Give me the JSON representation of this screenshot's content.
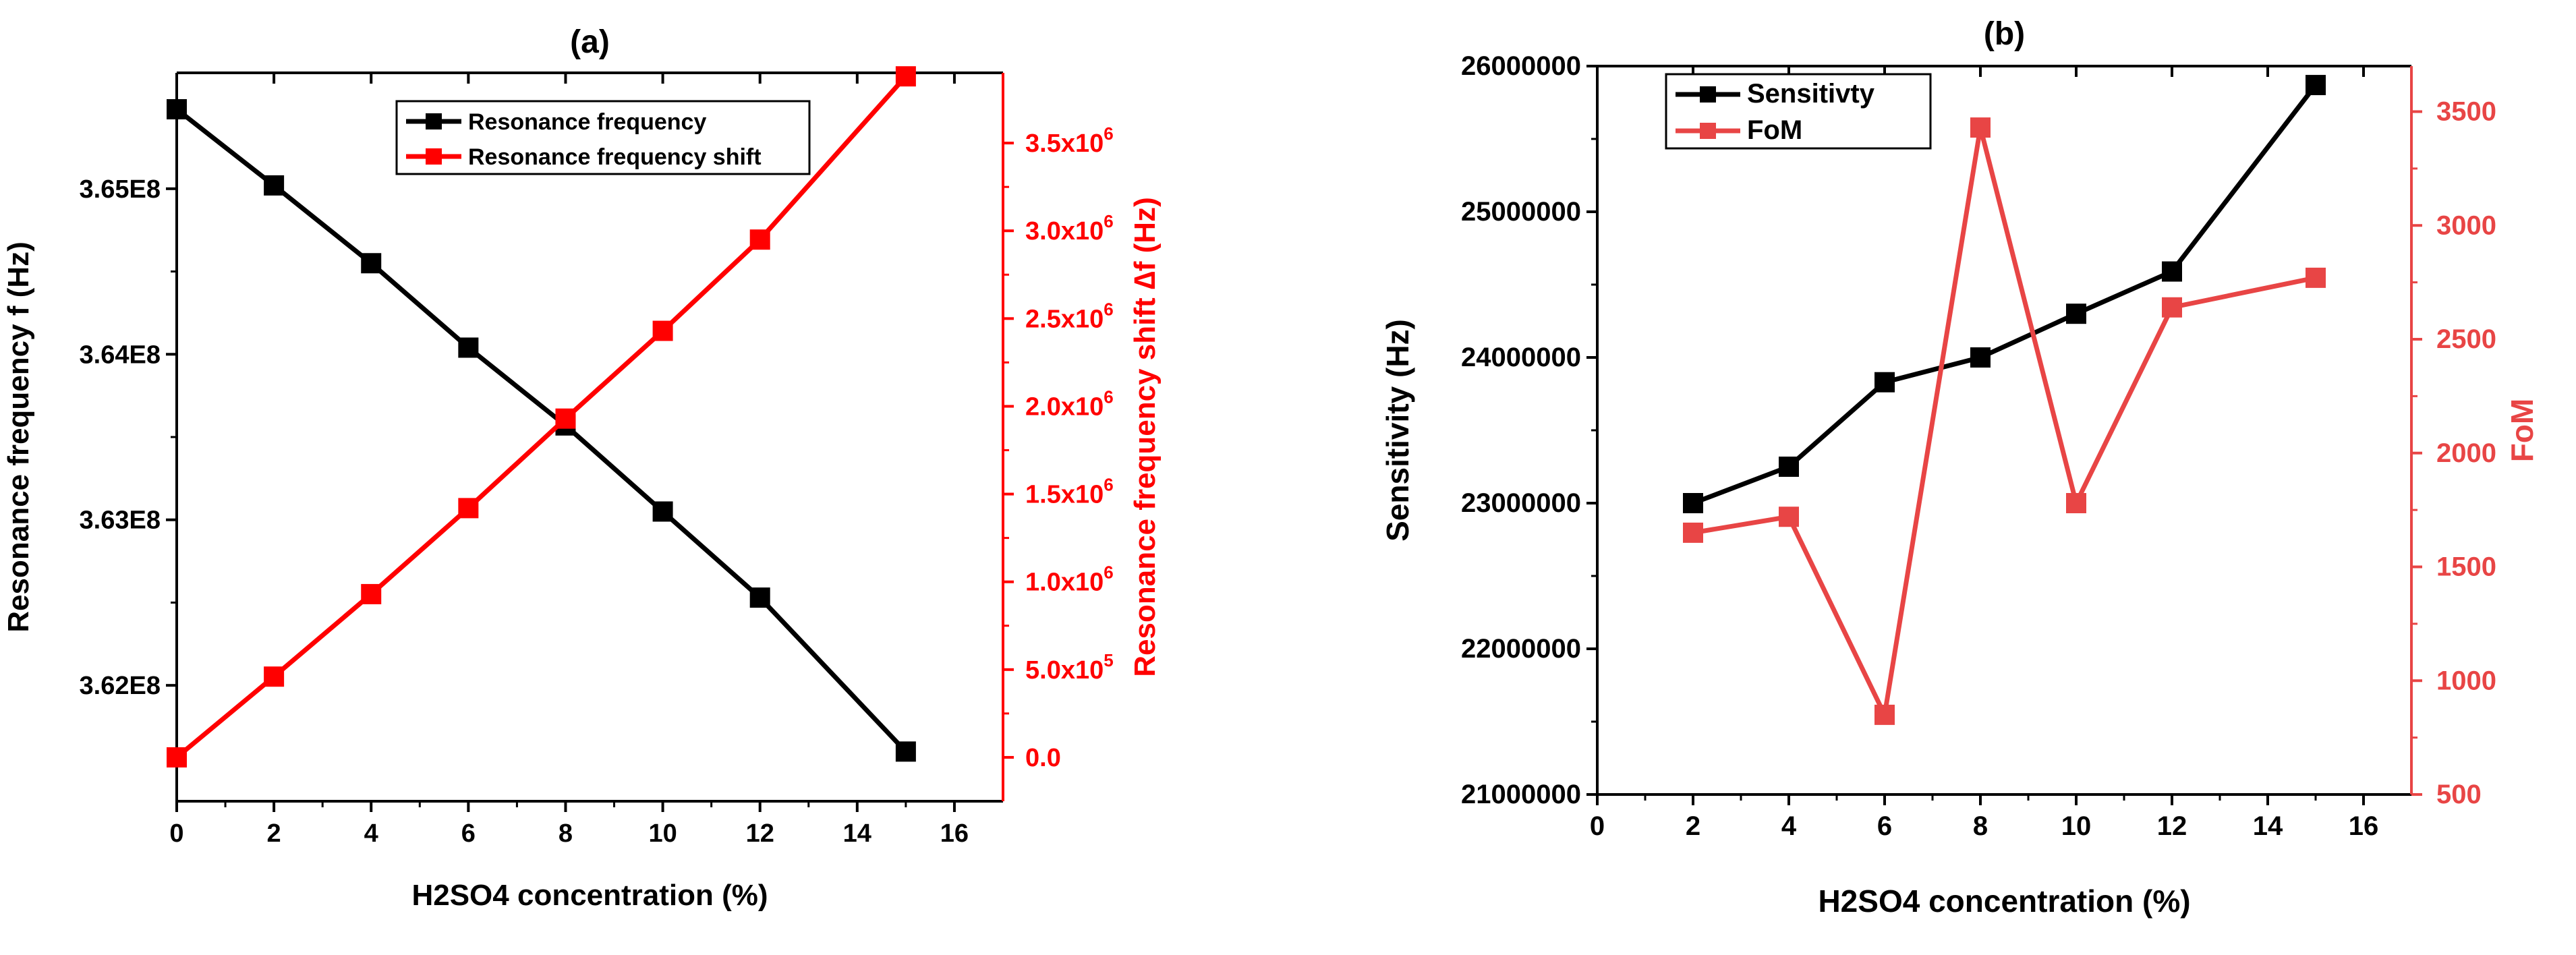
{
  "chart_data": [
    {
      "type": "line",
      "panel_label": "(a)",
      "xlabel": "H2SO4 concentration (%)",
      "ylabel_left": "Resonance frequency f (Hz)",
      "ylabel_right": "Resonance frequency shift ∆f (Hz)",
      "xlim": [
        0,
        17
      ],
      "xticks": [
        0,
        2,
        4,
        6,
        8,
        10,
        12,
        14,
        16
      ],
      "ylim_left": [
        361300000,
        365700000
      ],
      "yticks_left": [
        362000000,
        363000000,
        364000000,
        365000000
      ],
      "ytick_labels_left": [
        "3.62E8",
        "3.63E8",
        "3.64E8",
        "3.65E8"
      ],
      "ylim_right": [
        -250000,
        3900000
      ],
      "yticks_right": [
        0,
        500000,
        1000000,
        1500000,
        2000000,
        2500000,
        3000000,
        3500000
      ],
      "ytick_labels_right": [
        {
          "m": "0.0",
          "e": ""
        },
        {
          "m": "5.0x10",
          "e": "5"
        },
        {
          "m": "1.0x10",
          "e": "6"
        },
        {
          "m": "1.5x10",
          "e": "6"
        },
        {
          "m": "2.0x10",
          "e": "6"
        },
        {
          "m": "2.5x10",
          "e": "6"
        },
        {
          "m": "3.0x10",
          "e": "6"
        },
        {
          "m": "3.5x10",
          "e": "6"
        }
      ],
      "legend_position": "top-center",
      "series": [
        {
          "name": "Resonance frequency",
          "axis": "left",
          "color": "#000000",
          "x": [
            0,
            2,
            4,
            6,
            8,
            10,
            12,
            15
          ],
          "y": [
            365480000,
            365020000,
            364550000,
            364040000,
            363570000,
            363050000,
            362530000,
            361600000
          ]
        },
        {
          "name": "Resonance frequency shift",
          "axis": "right",
          "color": "#ff0000",
          "x": [
            0,
            2,
            4,
            6,
            8,
            10,
            12,
            15
          ],
          "y": [
            0,
            460000,
            930000,
            1420000,
            1930000,
            2430000,
            2950000,
            3880000
          ]
        }
      ]
    },
    {
      "type": "line",
      "panel_label": "(b)",
      "xlabel": "H2SO4 concentration (%)",
      "ylabel_left": "Sensitivity (Hz)",
      "ylabel_right": "FoM",
      "xlim": [
        0,
        17
      ],
      "xticks": [
        0,
        2,
        4,
        6,
        8,
        10,
        12,
        14,
        16
      ],
      "ylim_left": [
        21000000,
        26000000
      ],
      "yticks_left": [
        21000000,
        22000000,
        23000000,
        24000000,
        25000000,
        26000000
      ],
      "ytick_labels_left": [
        "21000000",
        "22000000",
        "23000000",
        "24000000",
        "25000000",
        "26000000"
      ],
      "ylim_right": [
        500,
        3700
      ],
      "yticks_right": [
        500,
        1000,
        1500,
        2000,
        2500,
        3000,
        3500
      ],
      "ytick_labels_right": [
        "500",
        "1000",
        "1500",
        "2000",
        "2500",
        "3000",
        "3500"
      ],
      "legend_position": "top-left",
      "series": [
        {
          "name": "Sensitivty",
          "axis": "left",
          "color": "#000000",
          "x": [
            2,
            4,
            6,
            8,
            10,
            12,
            15
          ],
          "y": [
            23000000,
            23250000,
            23830000,
            24000000,
            24300000,
            24590000,
            25870000
          ]
        },
        {
          "name": "FoM",
          "axis": "right",
          "color": "#e84545",
          "x": [
            2,
            4,
            6,
            8,
            10,
            12,
            15
          ],
          "y": [
            1650,
            1720,
            850,
            3430,
            1780,
            2640,
            2770
          ]
        }
      ]
    }
  ]
}
